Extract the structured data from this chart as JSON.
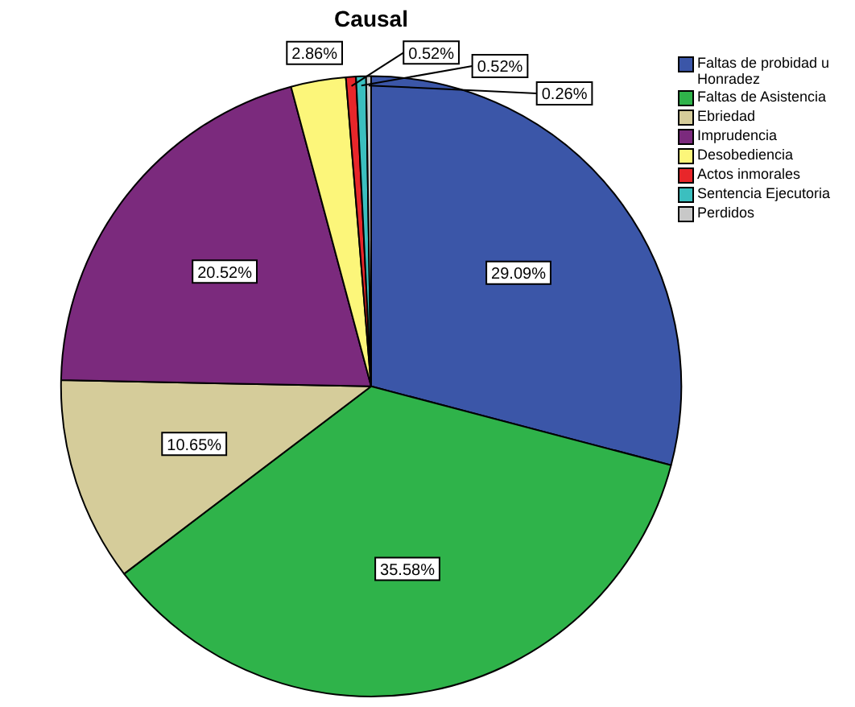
{
  "chart_data": {
    "type": "pie",
    "title": "Causal",
    "categories": [
      "Faltas de probidad u Honradez",
      "Faltas de Asistencia",
      "Ebriedad",
      "Imprudencia",
      "Desobediencia",
      "Actos inmorales",
      "Sentencia Ejecutoria",
      "Perdidos"
    ],
    "values": [
      29.09,
      35.58,
      10.65,
      20.52,
      2.86,
      0.52,
      0.52,
      0.26
    ],
    "value_labels": [
      "29.09%",
      "35.58%",
      "10.65%",
      "20.52%",
      "2.86%",
      "0.52%",
      "0.52%",
      "0.26%"
    ],
    "colors": [
      "#3b56a8",
      "#2fb34a",
      "#d5cc9a",
      "#7b2a7d",
      "#fcf67a",
      "#e8262a",
      "#3bbfbf",
      "#c8c8c8"
    ],
    "legend": "top right"
  }
}
